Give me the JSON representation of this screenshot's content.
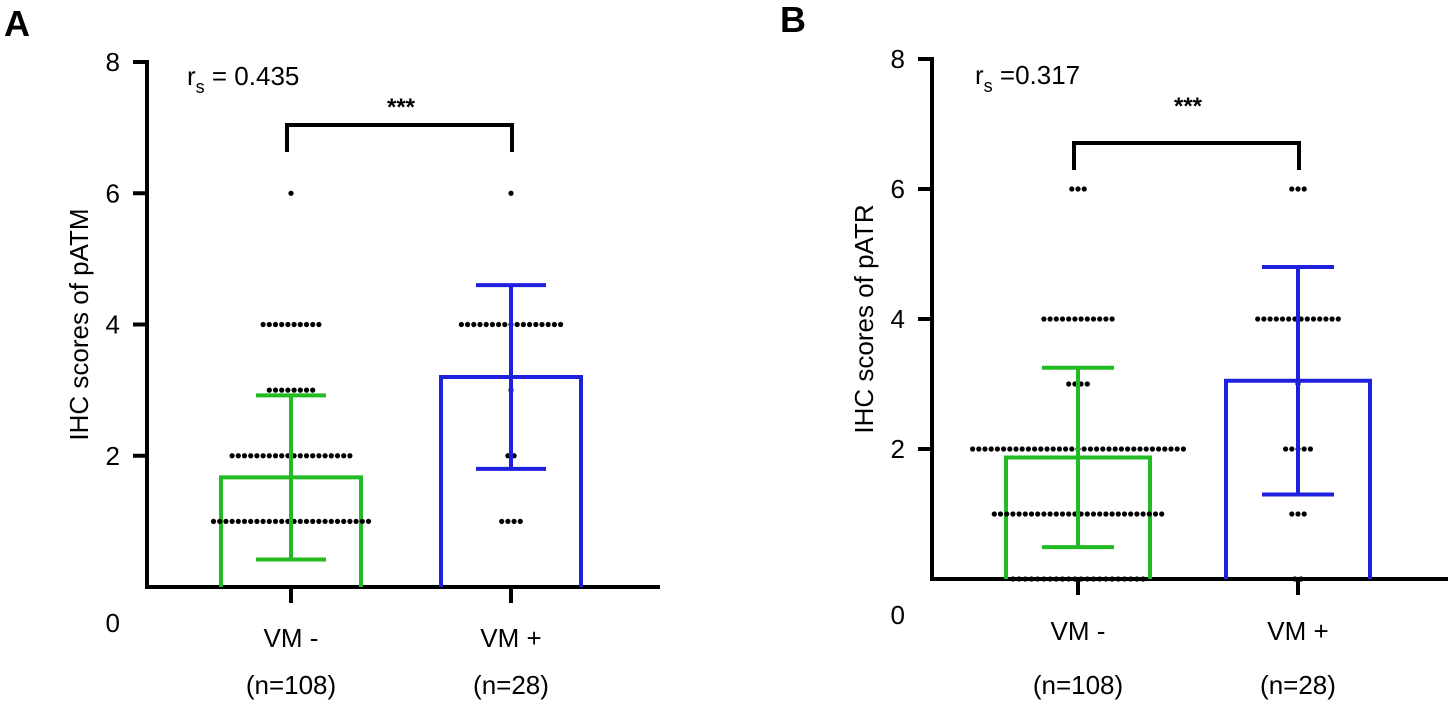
{
  "chart_data": [
    {
      "panel_label": "A",
      "type": "bar",
      "ylabel": "IHC scores of pATM",
      "ylim": [
        0,
        8
      ],
      "yticks": [
        0,
        2,
        4,
        6,
        8
      ],
      "rs_symbol": "r",
      "rs_subscript": "s",
      "rs_text": " = 0.435",
      "significance": "***",
      "categories": [
        "VM -",
        "VM +"
      ],
      "n_labels": [
        "(n=108)",
        "(n=28)"
      ],
      "bar_colors": [
        "#22bb22",
        "#1f1fe0"
      ],
      "means": [
        1.67,
        3.2
      ],
      "sd": [
        1.25,
        1.4
      ],
      "points": [
        [
          {
            "value": 6,
            "count": 1
          },
          {
            "value": 4,
            "count": 10
          },
          {
            "value": 3,
            "count": 8
          },
          {
            "value": 2,
            "count": 20
          },
          {
            "value": 1,
            "count": 26
          }
        ],
        [
          {
            "value": 6,
            "count": 1
          },
          {
            "value": 4,
            "count": 17
          },
          {
            "value": 3,
            "count": 1
          },
          {
            "value": 2,
            "count": 2
          },
          {
            "value": 1,
            "count": 4
          }
        ]
      ]
    },
    {
      "panel_label": "B",
      "type": "bar",
      "ylabel": "IHC scores of pATR",
      "ylim": [
        0,
        8
      ],
      "yticks": [
        0,
        2,
        4,
        6,
        8
      ],
      "rs_symbol": "r",
      "rs_subscript": "s",
      "rs_text": " =0.317",
      "significance": "***",
      "categories": [
        "VM -",
        "VM +"
      ],
      "n_labels": [
        "(n=108)",
        "(n=28)"
      ],
      "bar_colors": [
        "#22bb22",
        "#1f1fe0"
      ],
      "means": [
        1.87,
        3.05
      ],
      "sd": [
        1.38,
        1.75
      ],
      "points": [
        [
          {
            "value": 6,
            "count": 3
          },
          {
            "value": 4,
            "count": 12
          },
          {
            "value": 3,
            "count": 4
          },
          {
            "value": 2,
            "count": 35
          },
          {
            "value": 1,
            "count": 28
          },
          {
            "value": 0,
            "count": 22
          }
        ],
        [
          {
            "value": 6,
            "count": 3
          },
          {
            "value": 4,
            "count": 14
          },
          {
            "value": 3,
            "count": 1
          },
          {
            "value": 2,
            "count": 5
          },
          {
            "value": 1,
            "count": 3
          },
          {
            "value": 0,
            "count": 2
          }
        ]
      ]
    }
  ]
}
